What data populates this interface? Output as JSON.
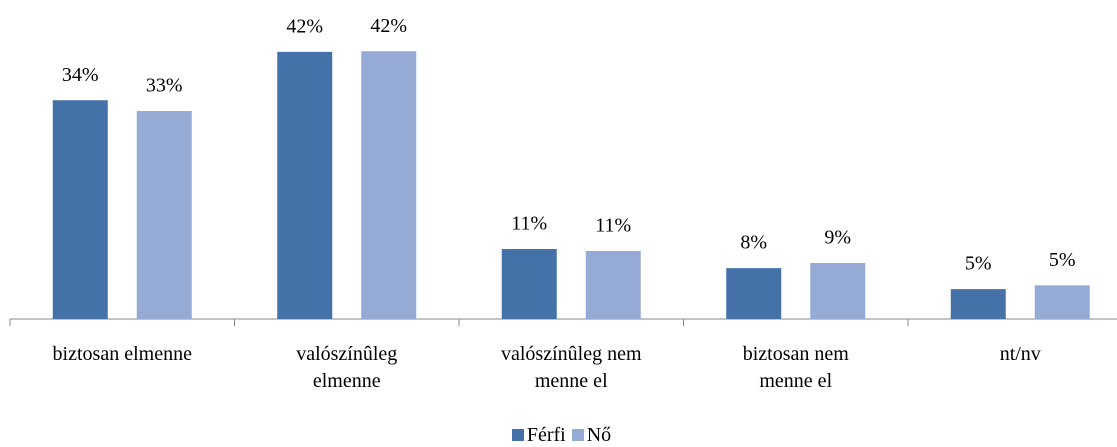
{
  "chart_data": {
    "type": "bar",
    "categories": [
      "biztosan elmenne",
      "valószínûleg elmenne",
      "valószínûleg nem menne el",
      "biztosan nem menne el",
      "nt/nv"
    ],
    "series": [
      {
        "name": "Férfi",
        "color": "#4472a8",
        "values": [
          34.4,
          42.0,
          11.0,
          8.0,
          4.7
        ],
        "value_labels": [
          "34%",
          "42%",
          "11%",
          "8%",
          "5%"
        ]
      },
      {
        "name": "Nő",
        "color": "#95aad4",
        "values": [
          32.7,
          42.1,
          10.7,
          8.8,
          5.3
        ],
        "value_labels": [
          "33%",
          "42%",
          "11%",
          "9%",
          "5%"
        ]
      }
    ],
    "legend": "bottom"
  }
}
